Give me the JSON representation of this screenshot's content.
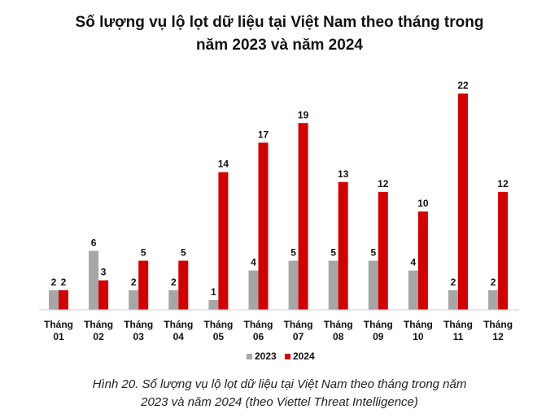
{
  "title_line1": "Số lượng vụ lộ lọt dữ liệu tại Việt Nam theo tháng trong",
  "title_line2": "năm 2023 và năm 2024",
  "caption_line1": "Hình 20. Số lượng vụ lộ lọt dữ liệu tại Việt Nam theo tháng trong năm",
  "caption_line2": "2023 và năm 2024 (theo Viettel Threat Intelligence)",
  "chart_data": {
    "type": "bar",
    "title": "Số lượng vụ lộ lọt dữ liệu tại Việt Nam theo tháng trong năm 2023 và năm 2024",
    "categories": [
      [
        "Tháng",
        "01"
      ],
      [
        "Tháng",
        "02"
      ],
      [
        "Tháng",
        "03"
      ],
      [
        "Tháng",
        "04"
      ],
      [
        "Tháng",
        "05"
      ],
      [
        "Tháng",
        "06"
      ],
      [
        "Tháng",
        "07"
      ],
      [
        "Tháng",
        "08"
      ],
      [
        "Tháng",
        "09"
      ],
      [
        "Tháng",
        "10"
      ],
      [
        "Tháng",
        "11"
      ],
      [
        "Tháng",
        "12"
      ]
    ],
    "series": [
      {
        "name": "2023",
        "color": "#a6a6a6",
        "values": [
          2,
          6,
          2,
          2,
          1,
          4,
          5,
          5,
          5,
          4,
          2,
          2
        ]
      },
      {
        "name": "2024",
        "color": "#d40000",
        "values": [
          2,
          3,
          5,
          5,
          14,
          17,
          19,
          13,
          12,
          10,
          22,
          12
        ]
      }
    ],
    "ylim": [
      0,
      22
    ],
    "grid": false,
    "legend_position": "bottom"
  }
}
